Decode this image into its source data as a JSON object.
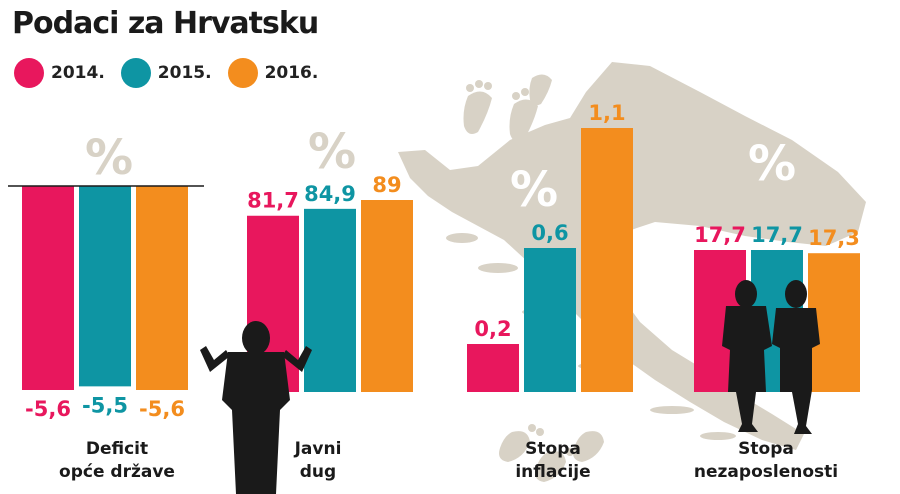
{
  "title": "Podaci za Hrvatsku",
  "legend": [
    {
      "label": "2014.",
      "color": "#e8175d"
    },
    {
      "label": "2015.",
      "color": "#0e95a3"
    },
    {
      "label": "2016.",
      "color": "#f38d1e"
    }
  ],
  "chart_data": [
    {
      "type": "bar",
      "category": "Deficit\nopće države",
      "unit": "%",
      "series": [
        {
          "name": "2014.",
          "value": -5.6,
          "label": "-5,6"
        },
        {
          "name": "2015.",
          "value": -5.5,
          "label": "-5,5"
        },
        {
          "name": "2016.",
          "value": -5.6,
          "label": "-5,6"
        }
      ]
    },
    {
      "type": "bar",
      "category": "Javni\ndug",
      "unit": "%",
      "series": [
        {
          "name": "2014.",
          "value": 81.7,
          "label": "81,7"
        },
        {
          "name": "2015.",
          "value": 84.9,
          "label": "84,9"
        },
        {
          "name": "2016.",
          "value": 89,
          "label": "89"
        }
      ]
    },
    {
      "type": "bar",
      "category": "Stopa\ninflacije",
      "unit": "%",
      "series": [
        {
          "name": "2014.",
          "value": 0.2,
          "label": "0,2"
        },
        {
          "name": "2015.",
          "value": 0.6,
          "label": "0,6"
        },
        {
          "name": "2016.",
          "value": 1.1,
          "label": "1,1"
        }
      ]
    },
    {
      "type": "bar",
      "category": "Stopa\nnezaposlenosti",
      "unit": "%",
      "series": [
        {
          "name": "2014.",
          "value": 17.7,
          "label": "17,7"
        },
        {
          "name": "2015.",
          "value": 17.7,
          "label": "17,7"
        },
        {
          "name": "2016.",
          "value": 17.3,
          "label": "17,3"
        }
      ]
    }
  ],
  "colors": {
    "pink": "#e8175d",
    "teal": "#0e95a3",
    "orange": "#f38d1e",
    "map": "#d8d2c6",
    "silhouette": "#1a1a1a"
  }
}
